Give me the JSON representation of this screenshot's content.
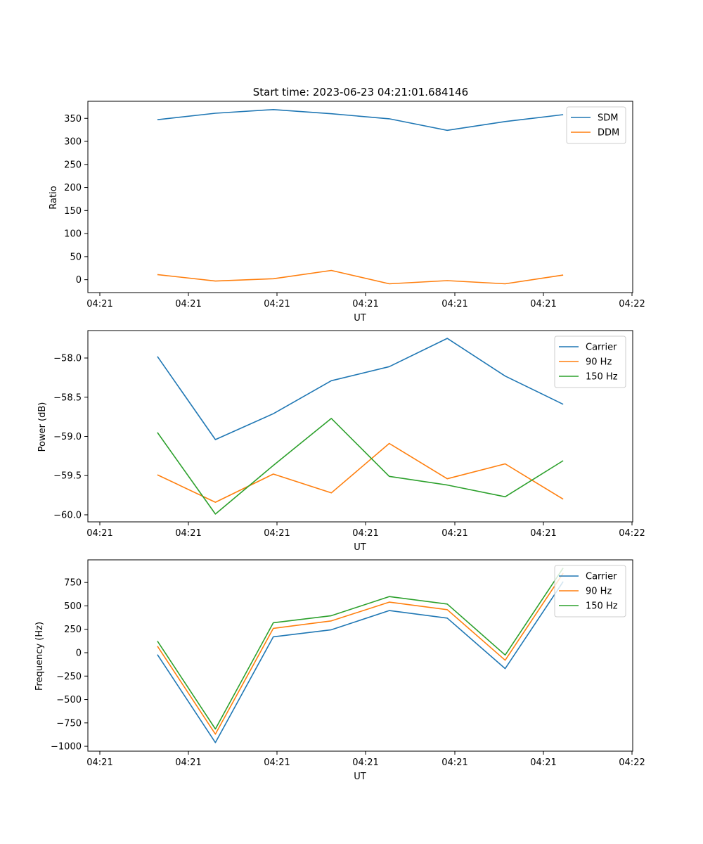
{
  "chart_data": [
    {
      "type": "line",
      "title": "Start time: 2023-06-23 04:21:01.684146",
      "xlabel": "UT",
      "ylabel": "Ratio",
      "x_tick_labels": [
        "04:21",
        "04:21",
        "04:21",
        "04:21",
        "04:21",
        "04:21",
        "04:22"
      ],
      "x": [
        1,
        2,
        3,
        4,
        5,
        6,
        7,
        8
      ],
      "xlim": [
        -0.2,
        9.2
      ],
      "ylim": [
        -28,
        387
      ],
      "yticks": [
        0,
        50,
        100,
        150,
        200,
        250,
        300,
        350
      ],
      "legend": "top-right",
      "grid": false,
      "series": [
        {
          "name": "SDM",
          "color": "#1f77b4",
          "values": [
            347,
            361,
            369,
            360,
            349,
            324,
            343,
            358
          ]
        },
        {
          "name": "DDM",
          "color": "#ff7f0e",
          "values": [
            11,
            -3,
            2,
            20,
            -9,
            -2,
            -9,
            10
          ]
        }
      ]
    },
    {
      "type": "line",
      "title": "",
      "xlabel": "UT",
      "ylabel": "Power (dB)",
      "x_tick_labels": [
        "04:21",
        "04:21",
        "04:21",
        "04:21",
        "04:21",
        "04:21",
        "04:22"
      ],
      "x": [
        1,
        2,
        3,
        4,
        5,
        6,
        7,
        8
      ],
      "xlim": [
        -0.2,
        9.2
      ],
      "ylim": [
        -60.09,
        -57.65
      ],
      "yticks": [
        -60.0,
        -59.5,
        -59.0,
        -58.5,
        -58.0
      ],
      "legend": "top-right",
      "grid": false,
      "series": [
        {
          "name": "Carrier",
          "color": "#1f77b4",
          "values": [
            -57.98,
            -59.04,
            -58.71,
            -58.29,
            -58.11,
            -57.75,
            -58.23,
            -58.59
          ]
        },
        {
          "name": "90 Hz",
          "color": "#ff7f0e",
          "values": [
            -59.49,
            -59.84,
            -59.48,
            -59.72,
            -59.09,
            -59.54,
            -59.35,
            -59.8
          ]
        },
        {
          "name": "150 Hz",
          "color": "#2ca02c",
          "values": [
            -58.95,
            -59.99,
            -59.37,
            -58.77,
            -59.51,
            -59.62,
            -59.77,
            -59.31
          ]
        }
      ]
    },
    {
      "type": "line",
      "title": "",
      "xlabel": "UT",
      "ylabel": "Frequency (Hz)",
      "x_tick_labels": [
        "04:21",
        "04:21",
        "04:21",
        "04:21",
        "04:21",
        "04:21",
        "04:22"
      ],
      "x": [
        1,
        2,
        3,
        4,
        5,
        6,
        7,
        8
      ],
      "xlim": [
        -0.2,
        9.2
      ],
      "ylim": [
        -1052,
        992
      ],
      "yticks": [
        -1000,
        -750,
        -500,
        -250,
        0,
        250,
        500,
        750
      ],
      "legend": "top-right",
      "grid": false,
      "series": [
        {
          "name": "Carrier",
          "color": "#1f77b4",
          "values": [
            -20,
            -960,
            170,
            245,
            450,
            370,
            -170,
            760
          ]
        },
        {
          "name": "90 Hz",
          "color": "#ff7f0e",
          "values": [
            70,
            -870,
            260,
            340,
            540,
            460,
            -80,
            850
          ]
        },
        {
          "name": "150 Hz",
          "color": "#2ca02c",
          "values": [
            125,
            -815,
            320,
            395,
            600,
            520,
            -25,
            905
          ]
        }
      ]
    }
  ]
}
